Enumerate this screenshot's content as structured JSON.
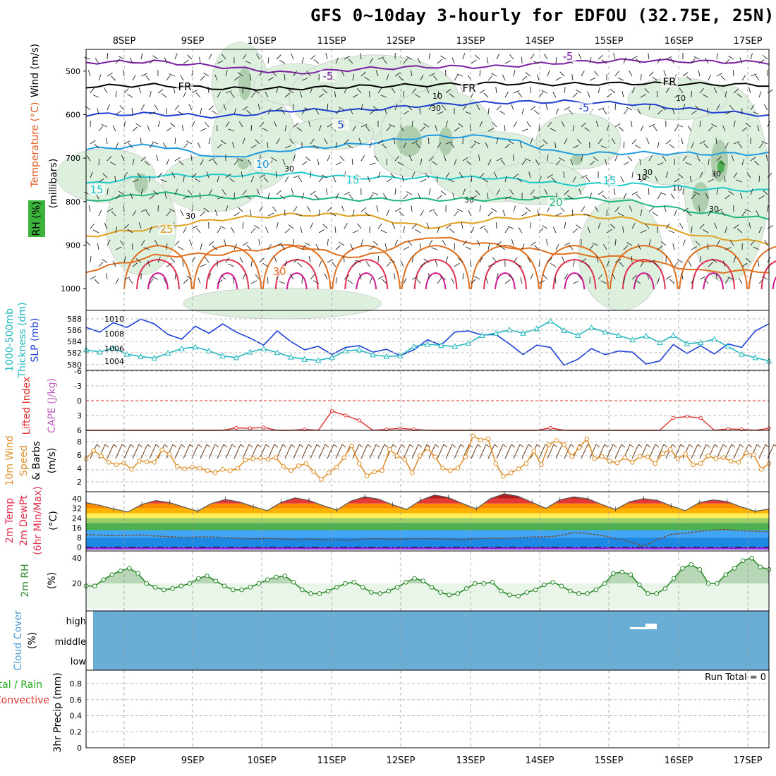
{
  "title": "GFS 0~10day 3-hourly for EDFOU (32.75E, 25N)",
  "dates": [
    "8SEP",
    "9SEP",
    "10SEP",
    "11SEP",
    "12SEP",
    "13SEP",
    "14SEP",
    "15SEP",
    "16SEP",
    "17SEP"
  ],
  "run_total_label": "Run Total = 0",
  "colors": {
    "rh_fill": "#dcefdc",
    "rh_dark": "#a6c8a6",
    "temp_m5": "#7a1fa2",
    "temp_0": "#000000",
    "temp_5": "#1f3fd0",
    "temp_10": "#1f9ce0",
    "temp_15": "#1fc9c9",
    "temp_20": "#1fb87a",
    "temp_25": "#e0a020",
    "temp_30": "#e07020",
    "temp_35": "#e03050",
    "temp_40": "#d01890",
    "slp": "#1a3fd8",
    "thickness": "#22b8c0",
    "lifted": "#e03030",
    "cape": "#c060c0",
    "wind10": "#e0902a",
    "rh2m": "#2a8a2a",
    "cloud": "#6aaed6",
    "precip_total": "#22aa22",
    "precip_conv": "#e03030"
  },
  "chart_data": [
    {
      "panel": "upper-air",
      "type": "contour",
      "title": "",
      "ylabel_parts": [
        "Wind (m/s)",
        "Temperature (°C)",
        "RH (%)"
      ],
      "ylabel_units": "(millibars)",
      "yticks": [
        500,
        600,
        700,
        800,
        900,
        1000
      ],
      "ylim": [
        1050,
        450
      ],
      "isotherm_labels": [
        {
          "text": "-5",
          "series": "temp_m5"
        },
        {
          "text": "-5",
          "series": "temp_m5"
        },
        {
          "text": "FR",
          "series": "temp_0"
        },
        {
          "text": "FR",
          "series": "temp_0"
        },
        {
          "text": "FR",
          "series": "temp_0"
        },
        {
          "text": "-5",
          "series": "temp_5"
        },
        {
          "text": "5",
          "series": "temp_5"
        },
        {
          "text": "10",
          "series": "temp_10"
        },
        {
          "text": "15",
          "series": "temp_15"
        },
        {
          "text": "15",
          "series": "temp_15"
        },
        {
          "text": "15",
          "series": "temp_15"
        },
        {
          "text": "20",
          "series": "temp_20"
        },
        {
          "text": "25",
          "series": "temp_25"
        },
        {
          "text": "30",
          "series": "temp_30"
        }
      ],
      "rh_labels": [
        "10",
        "30",
        "30",
        "30",
        "30",
        "10",
        "30",
        "10",
        "30",
        "10",
        "30"
      ],
      "series": [
        {
          "name": "temp_m5",
          "values": [
            480,
            478,
            490,
            505,
            495,
            490,
            490,
            480,
            475,
            478,
            480
          ]
        },
        {
          "name": "temp_0",
          "values": [
            535,
            532,
            540,
            540,
            535,
            532,
            528,
            530,
            528,
            530,
            532
          ]
        },
        {
          "name": "temp_5",
          "values": [
            600,
            598,
            605,
            590,
            590,
            578,
            572,
            570,
            575,
            590,
            602
          ]
        },
        {
          "name": "temp_10",
          "values": [
            680,
            670,
            700,
            680,
            668,
            650,
            650,
            690,
            688,
            690,
            690
          ]
        },
        {
          "name": "temp_15",
          "values": [
            760,
            740,
            740,
            735,
            745,
            745,
            745,
            760,
            760,
            770,
            775
          ]
        },
        {
          "name": "temp_20",
          "values": [
            800,
            780,
            790,
            790,
            795,
            795,
            795,
            790,
            800,
            825,
            840
          ]
        },
        {
          "name": "temp_25",
          "values": [
            880,
            860,
            840,
            830,
            830,
            860,
            840,
            830,
            840,
            880,
            895
          ]
        },
        {
          "name": "temp_30",
          "values": [
            960,
            925,
            920,
            900,
            930,
            880,
            900,
            920,
            930,
            960,
            960
          ]
        }
      ]
    },
    {
      "panel": "slp-thickness",
      "type": "line",
      "ylabel_left": [
        "1000-500mb",
        "Thickness (dm)"
      ],
      "ylabel_right": "SLP (mb)",
      "y_left_ticks": [
        "588",
        "586",
        "584",
        "582",
        "580"
      ],
      "y_right_ticks": [
        "1010",
        "1008",
        "1006",
        "1004"
      ],
      "series": [
        {
          "name": "SLP (mb)",
          "values": [
            1009.0,
            1008.2,
            1009.8,
            1009.0,
            1010.4,
            1009.6,
            1007.8,
            1007.0,
            1009.2,
            1008.0,
            1009.6,
            1008.2,
            1007.2,
            1006.0,
            1008.4,
            1006.6,
            1005.2,
            1005.8,
            1004.4,
            1005.6,
            1005.9,
            1004.8,
            1005.3,
            1004.2,
            1005.2,
            1006.9,
            1006.0,
            1008.2,
            1008.4,
            1007.7,
            1007.8,
            1006.2,
            1004.4,
            1006.0,
            1005.6,
            1002.6,
            1003.6,
            1005.4,
            1004.4,
            1005.0,
            1004.8,
            1002.8,
            1003.3,
            1006.1,
            1004.6,
            1005.9,
            1004.5,
            1006.2,
            1005.6,
            1008.4,
            1009.6
          ]
        },
        {
          "name": "1000-500mb Thickness (dm)",
          "values": [
            582.4,
            582.0,
            582.7,
            581.6,
            581.2,
            580.9,
            581.8,
            582.6,
            582.9,
            582.2,
            581.3,
            581.0,
            582.0,
            582.6,
            581.9,
            581.1,
            580.7,
            580.5,
            581.0,
            582.2,
            582.4,
            581.5,
            581.2,
            581.3,
            583.0,
            583.4,
            583.2,
            583.0,
            583.6,
            585.0,
            585.4,
            586.0,
            585.4,
            586.2,
            587.6,
            585.9,
            585.0,
            586.4,
            585.6,
            585.0,
            584.2,
            584.9,
            583.7,
            585.0,
            583.5,
            583.7,
            584.3,
            583.0,
            581.6,
            581.0,
            580.4
          ]
        }
      ]
    },
    {
      "panel": "stability",
      "type": "line",
      "ylabel": [
        "Lifted Index",
        "CAPE (J/kg)"
      ],
      "yticks": [
        "-6",
        "-3",
        "0",
        "3",
        "6"
      ],
      "series": [
        {
          "name": "Lifted Index",
          "values": [
            6,
            6,
            6,
            6,
            6,
            6,
            6,
            6,
            6,
            6,
            6,
            5.5,
            5.6,
            5.4,
            6,
            6,
            5.8,
            6,
            2.1,
            3.0,
            4.0,
            6,
            5.8,
            5.6,
            5.8,
            6,
            6,
            6,
            6,
            6,
            6,
            6,
            6,
            6,
            5.5,
            6,
            6,
            6,
            6,
            6,
            6,
            6,
            6,
            3.5,
            3.2,
            3.5,
            6,
            5.7,
            5.8,
            6,
            5.6
          ]
        },
        {
          "name": "CAPE (J/kg)",
          "values": [
            0,
            0,
            0,
            0,
            0,
            0,
            0,
            0,
            0,
            0,
            0,
            0,
            0,
            0,
            0,
            0,
            0,
            0,
            0,
            0,
            0,
            0,
            0,
            0,
            0,
            0,
            0,
            0,
            0,
            0,
            0,
            0,
            0,
            0,
            0,
            0,
            0,
            0,
            0,
            0,
            0,
            0,
            0,
            0,
            0,
            0,
            0,
            0,
            0,
            0,
            0
          ]
        }
      ]
    },
    {
      "panel": "wind10m",
      "type": "line",
      "ylabel": [
        "10m Wind",
        "Speed",
        "& Barbs",
        "(m/s)"
      ],
      "yticks": [
        "8",
        "6",
        "4",
        "2"
      ],
      "series": [
        {
          "name": "10m Wind Speed (m/s)",
          "values": [
            5.0,
            6.4,
            5.5,
            4.4,
            4.0,
            4.3,
            3.2,
            4.6,
            4.5,
            4.4,
            6.5,
            5.8,
            3.7,
            3.3,
            3.6,
            3.4,
            3.0,
            2.6,
            3.2,
            3.0,
            3.4,
            4.8,
            5.0,
            5.1,
            4.9,
            5.2,
            3.7,
            3.0,
            3.8,
            4.2,
            2.8,
            1.5,
            2.6,
            3.6,
            5.2,
            7.2,
            4.2,
            2.1,
            2.8,
            3.0,
            6.6,
            5.5,
            4.9,
            2.6,
            5.5,
            6.8,
            5.3,
            3.4,
            3.0,
            3.4,
            5.3,
            8.9,
            8.2,
            8.4,
            4.2,
            2.0,
            2.6,
            3.3,
            4.2,
            6.3,
            4.0,
            7.4,
            8.1,
            7.4,
            5.4,
            6.9,
            8.4,
            5.0,
            5.4,
            4.6,
            4.3,
            5.2,
            4.4,
            5.4,
            5.3,
            4.2,
            5.9,
            6.6,
            5.0,
            5.8,
            4.0,
            4.2,
            5.5,
            5.0,
            5.2,
            4.6,
            4.4,
            6.0,
            5.7,
            3.2,
            4.2
          ]
        }
      ]
    },
    {
      "panel": "temperature2m",
      "type": "area",
      "ylabel": [
        "2m Temp",
        "2m DewPt",
        "(6hr Min/Max)",
        "(°C)"
      ],
      "yticks": [
        "40",
        "32",
        "24",
        "16",
        "8",
        "0"
      ],
      "series": [
        {
          "name": "2m Temp (°C)",
          "values": [
            36.7,
            34.5,
            31.4,
            29.1,
            35.2,
            38.4,
            36.7,
            33.1,
            29.6,
            36.0,
            39.3,
            37.3,
            33.4,
            30.1,
            37.0,
            40.7,
            38.6,
            34.3,
            30.6,
            38.0,
            41.5,
            39.6,
            35.0,
            31.2,
            38.6,
            43.0,
            41.0,
            36.0,
            31.6,
            40.0,
            44.0,
            42.0,
            37.0,
            32.0,
            39.0,
            41.5,
            40.0,
            35.2,
            31.1,
            37.4,
            40.0,
            38.6,
            34.0,
            30.1,
            36.7,
            39.0,
            37.6,
            33.2,
            29.6,
            31.4
          ]
        },
        {
          "name": "2m DewPt (°C)",
          "values": [
            10.2,
            10.0,
            9.4,
            9.7,
            10.1,
            9.2,
            8.6,
            8.0,
            8.4,
            8.4,
            7.9,
            7.4,
            6.8,
            7.2,
            6.9,
            6.2,
            6.5,
            6.2,
            5.8,
            5.6,
            6.8,
            7.1,
            6.4,
            6.8,
            7.0,
            6.8,
            6.6,
            6.2,
            6.9,
            7.5,
            7.2,
            7.8,
            8.4,
            8.5,
            9.4,
            12.0,
            11.3,
            9.6,
            7.1,
            4.5,
            0.8,
            6.4,
            10.5,
            11.5,
            13.0,
            14.2,
            14.5,
            13.5,
            13.0,
            12.6
          ]
        }
      ]
    },
    {
      "panel": "rh2m",
      "type": "line",
      "ylabel": [
        "2m RH",
        "(%)"
      ],
      "yticks": [
        "40",
        "20"
      ],
      "series": [
        {
          "name": "2m RH (%)",
          "values": [
            18,
            18,
            23,
            27,
            30,
            32,
            28,
            20,
            17,
            15,
            16,
            18,
            20,
            24,
            26,
            22,
            18,
            15,
            15,
            17,
            20,
            23,
            25,
            26,
            21,
            15,
            12,
            12,
            14,
            17,
            20,
            21,
            17,
            13,
            12,
            14,
            17,
            21,
            24,
            22,
            17,
            13,
            11,
            12,
            16,
            20,
            20,
            21,
            14,
            11,
            10,
            13,
            15,
            19,
            21,
            18,
            14,
            12,
            12,
            15,
            20,
            28,
            29,
            27,
            19,
            12,
            12,
            16,
            24,
            32,
            35,
            31,
            20,
            20,
            27,
            32,
            38,
            40,
            33,
            31
          ]
        }
      ]
    },
    {
      "panel": "cloud",
      "type": "heatmap",
      "ylabel": [
        "Cloud Cover",
        "(%)"
      ],
      "yticks": [
        "high",
        "middle",
        "low"
      ],
      "value": "none",
      "note": "clear sky throughout; small high-cloud fragment near 15SEP"
    },
    {
      "panel": "precip",
      "type": "bar",
      "ylabel": [
        "Total / Rain",
        "Convective",
        "3hr Precip (mm)"
      ],
      "yticks": [
        "0.8",
        "0.6",
        "0.4",
        "0.2",
        "0"
      ],
      "ylim": [
        0,
        0.95
      ],
      "series": [
        {
          "name": "Total / Rain",
          "values": []
        },
        {
          "name": "Convective",
          "values": []
        }
      ]
    }
  ]
}
